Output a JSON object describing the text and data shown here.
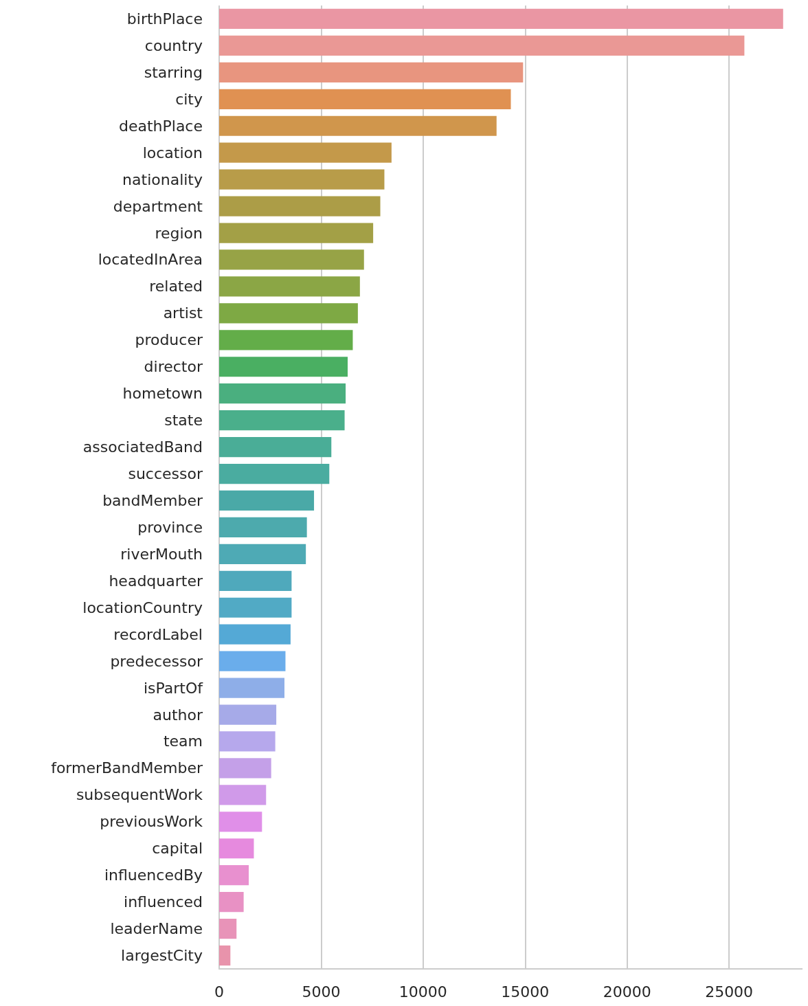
{
  "chart_data": {
    "type": "bar",
    "orientation": "horizontal",
    "categories": [
      "birthPlace",
      "country",
      "starring",
      "city",
      "deathPlace",
      "location",
      "nationality",
      "department",
      "region",
      "locatedInArea",
      "related",
      "artist",
      "producer",
      "director",
      "hometown",
      "state",
      "associatedBand",
      "successor",
      "bandMember",
      "province",
      "riverMouth",
      "headquarter",
      "locationCountry",
      "recordLabel",
      "predecessor",
      "isPartOf",
      "author",
      "team",
      "formerBandMember",
      "subsequentWork",
      "previousWork",
      "capital",
      "influencedBy",
      "influenced",
      "leaderName",
      "largestCity"
    ],
    "values": [
      27650,
      25750,
      14900,
      14300,
      13600,
      8450,
      8100,
      7900,
      7550,
      7100,
      6900,
      6800,
      6550,
      6300,
      6200,
      6150,
      5500,
      5400,
      4650,
      4300,
      4250,
      3550,
      3550,
      3500,
      3250,
      3200,
      2800,
      2750,
      2550,
      2300,
      2100,
      1700,
      1450,
      1200,
      850,
      550
    ],
    "colors": [
      "#ea96a3",
      "#ea9895",
      "#e8957f",
      "#e09152",
      "#d0964c",
      "#c4994a",
      "#b89c49",
      "#ac9d47",
      "#a3a046",
      "#97a346",
      "#8ba645",
      "#7ea944",
      "#63ad49",
      "#4aaf62",
      "#4aaf7f",
      "#4aaf8b",
      "#4aad97",
      "#4aaca0",
      "#4aa9a7",
      "#4daaad",
      "#4eaab5",
      "#4fa9bc",
      "#51aac5",
      "#54a9d6",
      "#6aadeb",
      "#8eaee8",
      "#a6aae8",
      "#b6a8ec",
      "#c4a0e8",
      "#d09ae9",
      "#e08fe8",
      "#e68ade",
      "#e890cf",
      "#e891c4",
      "#e893b8",
      "#e893ab"
    ],
    "xlim": [
      0,
      28600
    ],
    "xticks": [
      0,
      5000,
      10000,
      15000,
      20000,
      25000
    ],
    "grid": "x"
  }
}
